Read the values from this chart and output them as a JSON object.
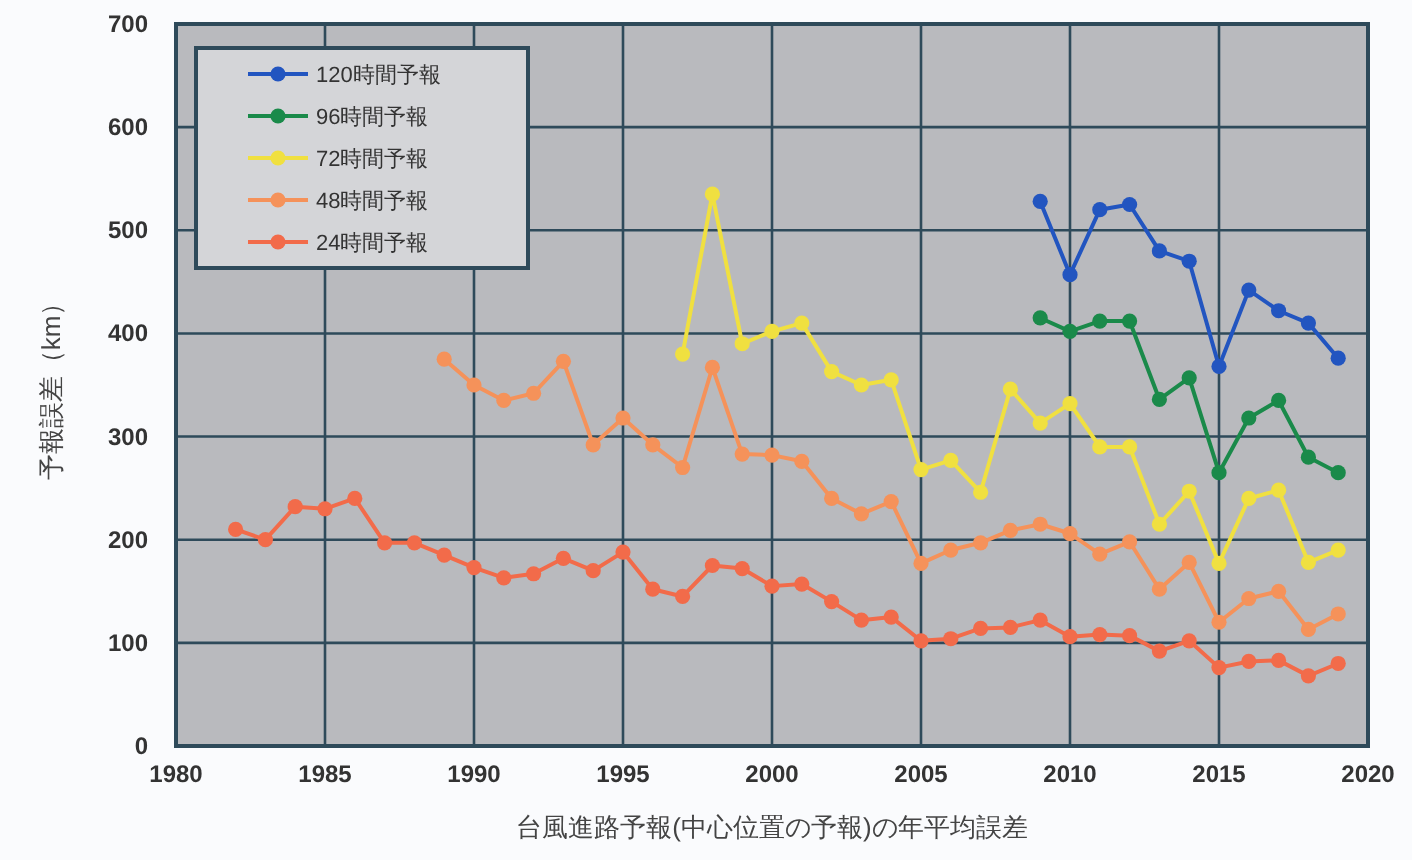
{
  "chart_data": {
    "type": "line",
    "xlabel": "台風進路予報(中心位置の予報)の年平均誤差",
    "ylabel": "予報誤差（km）",
    "xlim": [
      1980,
      2020
    ],
    "xticks": [
      1980,
      1985,
      1990,
      1995,
      2000,
      2005,
      2010,
      2015,
      2020
    ],
    "ylim": [
      0,
      700
    ],
    "yticks": [
      0,
      100,
      200,
      300,
      400,
      500,
      600,
      700
    ],
    "grid": true,
    "legend": "top left",
    "marker": "circle",
    "line_style": "solid",
    "series": [
      {
        "name": "120時間予報",
        "color": "#2255c0",
        "x": [
          2009,
          2010,
          2011,
          2012,
          2013,
          2014,
          2015,
          2016,
          2017,
          2018,
          2019
        ],
        "values": [
          528,
          457,
          520,
          525,
          480,
          470,
          368,
          442,
          422,
          410,
          376
        ]
      },
      {
        "name": "96時間予報",
        "color": "#1a8a4a",
        "x": [
          2009,
          2010,
          2011,
          2012,
          2013,
          2014,
          2015,
          2016,
          2017,
          2018,
          2019
        ],
        "values": [
          415,
          402,
          412,
          412,
          336,
          357,
          265,
          318,
          335,
          280,
          265
        ]
      },
      {
        "name": "72時間予報",
        "color": "#f0e040",
        "x": [
          1997,
          1998,
          1999,
          2000,
          2001,
          2002,
          2003,
          2004,
          2005,
          2006,
          2007,
          2008,
          2009,
          2010,
          2011,
          2012,
          2013,
          2014,
          2015,
          2016,
          2017,
          2018,
          2019
        ],
        "values": [
          380,
          535,
          390,
          402,
          410,
          363,
          350,
          355,
          268,
          277,
          246,
          346,
          313,
          332,
          290,
          290,
          215,
          247,
          177,
          240,
          248,
          178,
          190
        ]
      },
      {
        "name": "48時間予報",
        "color": "#f5925a",
        "x": [
          1989,
          1990,
          1991,
          1992,
          1993,
          1994,
          1995,
          1996,
          1997,
          1998,
          1999,
          2000,
          2001,
          2002,
          2003,
          2004,
          2005,
          2006,
          2007,
          2008,
          2009,
          2010,
          2011,
          2012,
          2013,
          2014,
          2015,
          2016,
          2017,
          2018,
          2019
        ],
        "values": [
          375,
          350,
          335,
          342,
          373,
          292,
          318,
          292,
          270,
          367,
          283,
          282,
          276,
          240,
          225,
          237,
          177,
          190,
          197,
          209,
          215,
          206,
          186,
          198,
          152,
          178,
          120,
          143,
          150,
          113,
          128
        ]
      },
      {
        "name": "24時間予報",
        "color": "#f26b4a",
        "x": [
          1982,
          1983,
          1984,
          1985,
          1986,
          1987,
          1988,
          1989,
          1990,
          1991,
          1992,
          1993,
          1994,
          1995,
          1996,
          1997,
          1998,
          1999,
          2000,
          2001,
          2002,
          2003,
          2004,
          2005,
          2006,
          2007,
          2008,
          2009,
          2010,
          2011,
          2012,
          2013,
          2014,
          2015,
          2016,
          2017,
          2018,
          2019
        ],
        "values": [
          210,
          200,
          232,
          230,
          240,
          197,
          197,
          185,
          173,
          163,
          167,
          182,
          170,
          188,
          152,
          145,
          175,
          172,
          155,
          157,
          140,
          122,
          125,
          102,
          104,
          114,
          115,
          122,
          106,
          108,
          107,
          92,
          102,
          76,
          82,
          83,
          68,
          80
        ]
      }
    ]
  }
}
